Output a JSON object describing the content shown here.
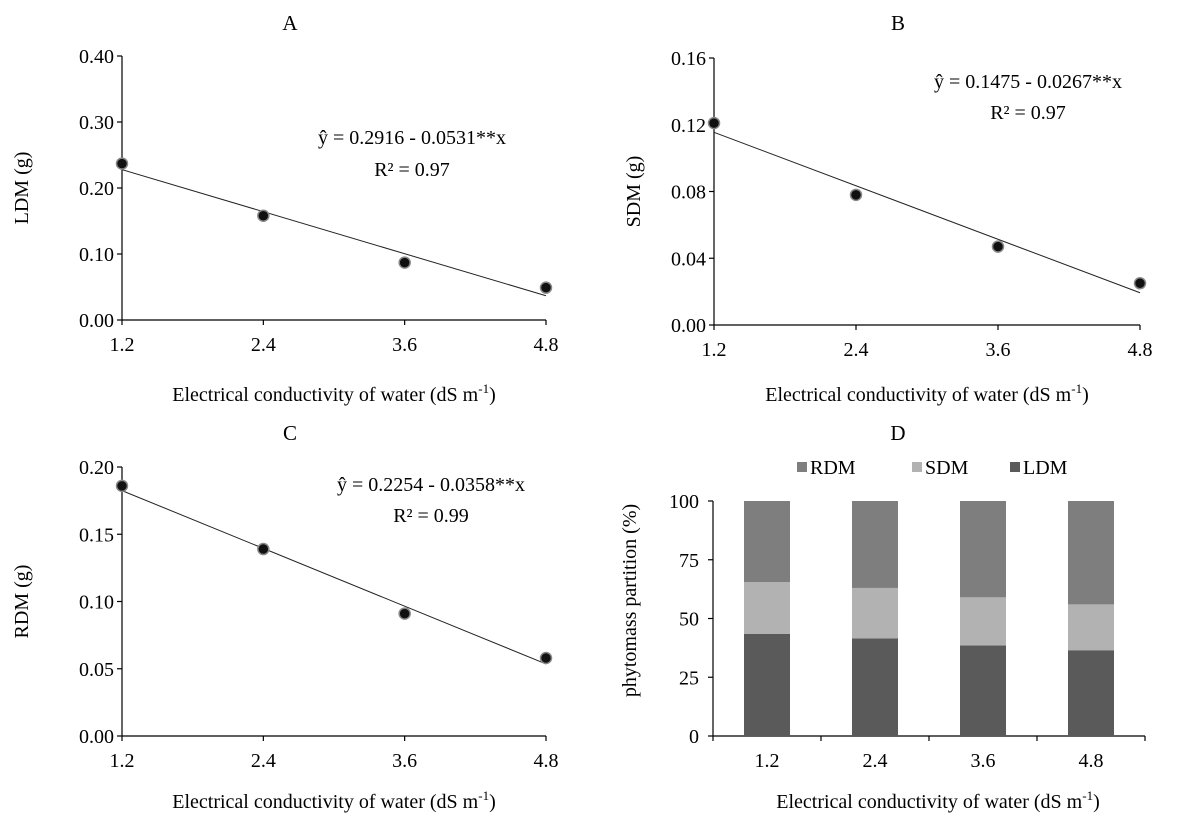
{
  "chart_data": [
    {
      "type": "scatter",
      "title": "A",
      "xlabel": "Electrical conductivity of water (dS m",
      "xlabel_sup": "-1",
      "xlabel_close": ")",
      "ylabel": "LDM (g)",
      "x_ticks": [
        "1.2",
        "2.4",
        "3.6",
        "4.8"
      ],
      "y_ticks": [
        "0.00",
        "0.10",
        "0.20",
        "0.30",
        "0.40"
      ],
      "xlim": [
        1.2,
        4.8
      ],
      "ylim": [
        0,
        0.4
      ],
      "x": [
        1.2,
        2.4,
        3.6,
        4.8
      ],
      "y": [
        0.237,
        0.158,
        0.087,
        0.049
      ],
      "fit": {
        "intercept": 0.2916,
        "slope": -0.0531
      },
      "equation": "ŷ = 0.2916 - 0.0531**x",
      "r2": "R² = 0.97"
    },
    {
      "type": "scatter",
      "title": "B",
      "xlabel": "Electrical conductivity of water (dS m",
      "xlabel_sup": "-1",
      "xlabel_close": ")",
      "ylabel": "SDM (g)",
      "x_ticks": [
        "1.2",
        "2.4",
        "3.6",
        "4.8"
      ],
      "y_ticks": [
        "0.00",
        "0.04",
        "0.08",
        "0.12",
        "0.16"
      ],
      "xlim": [
        1.2,
        4.8
      ],
      "ylim": [
        0,
        0.16
      ],
      "x": [
        1.2,
        2.4,
        3.6,
        4.8
      ],
      "y": [
        0.121,
        0.078,
        0.047,
        0.025
      ],
      "fit": {
        "intercept": 0.1475,
        "slope": -0.0267
      },
      "equation": "ŷ = 0.1475 - 0.0267**x",
      "r2": "R² = 0.97"
    },
    {
      "type": "scatter",
      "title": "C",
      "xlabel": "Electrical conductivity of water (dS m",
      "xlabel_sup": "-1",
      "xlabel_close": ")",
      "ylabel": "RDM (g)",
      "x_ticks": [
        "1.2",
        "2.4",
        "3.6",
        "4.8"
      ],
      "y_ticks": [
        "0.00",
        "0.05",
        "0.10",
        "0.15",
        "0.20"
      ],
      "xlim": [
        1.2,
        4.8
      ],
      "ylim": [
        0,
        0.2
      ],
      "x": [
        1.2,
        2.4,
        3.6,
        4.8
      ],
      "y": [
        0.186,
        0.139,
        0.091,
        0.058
      ],
      "fit": {
        "intercept": 0.2254,
        "slope": -0.0358
      },
      "equation": "ŷ = 0.2254 - 0.0358**x",
      "r2": "R² = 0.99"
    },
    {
      "type": "bar",
      "stacked": true,
      "title": "D",
      "xlabel": "Electrical conductivity of water (dS m",
      "xlabel_sup": "-1",
      "xlabel_close": ")",
      "ylabel": "phytomass partition (%)",
      "categories": [
        "1.2",
        "2.4",
        "3.6",
        "4.8"
      ],
      "y_ticks": [
        "0",
        "25",
        "50",
        "75",
        "100"
      ],
      "ylim": [
        0,
        100
      ],
      "legend_position": "top",
      "series": [
        {
          "name": "LDM",
          "color": "#5a5a5a",
          "values": [
            43.5,
            41.5,
            38.5,
            36.5
          ]
        },
        {
          "name": "SDM",
          "color": "#b2b2b2",
          "values": [
            22.0,
            21.5,
            20.5,
            19.5
          ]
        },
        {
          "name": "RDM",
          "color": "#7e7e7e",
          "values": [
            34.5,
            37.0,
            41.0,
            44.0
          ]
        }
      ],
      "legend_order": [
        "RDM",
        "SDM",
        "LDM"
      ]
    }
  ]
}
